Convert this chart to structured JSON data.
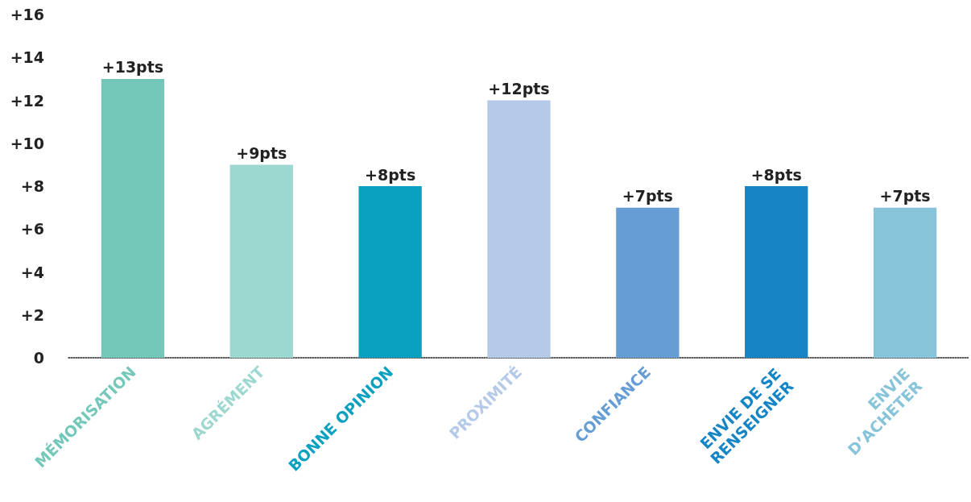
{
  "chart_data": {
    "type": "bar",
    "categories": [
      "MÉMORISATION",
      "AGRÉMENT",
      "BONNE OPINION",
      "PROXIMITÉ",
      "CONFIANCE",
      "ENVIE DE SE\nRENSEIGNER",
      "ENVIE\nD’ACHETER"
    ],
    "values": [
      13,
      9,
      8,
      12,
      7,
      8,
      7
    ],
    "colors": [
      "#74c8b9",
      "#9dd8d0",
      "#0aa0c0",
      "#b5c9e8",
      "#659dd4",
      "#1585c6",
      "#88c4d9"
    ],
    "value_labels": [
      "+13pts",
      "+9pts",
      "+8pts",
      "+12pts",
      "+7pts",
      "+8pts",
      "+7pts"
    ],
    "ylim": [
      0,
      16
    ],
    "yticks": [
      {
        "value": 0,
        "label": "0"
      },
      {
        "value": 2,
        "label": "+2"
      },
      {
        "value": 4,
        "label": "+4"
      },
      {
        "value": 6,
        "label": "+6"
      },
      {
        "value": 8,
        "label": "+8"
      },
      {
        "value": 10,
        "label": "+10"
      },
      {
        "value": 12,
        "label": "+12"
      },
      {
        "value": 14,
        "label": "+14"
      },
      {
        "value": 16,
        "label": "+16"
      }
    ],
    "grid": false
  }
}
